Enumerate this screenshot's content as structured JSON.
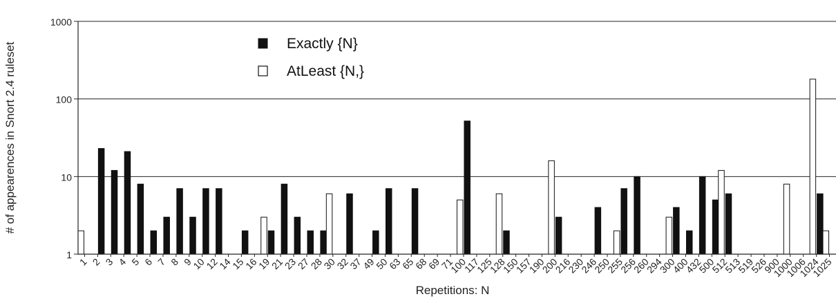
{
  "chart_data": {
    "type": "bar",
    "ylabel": "# of appearences in Snort 2.4 ruleset",
    "xlabel": "Repetitions: N",
    "yscale": "log",
    "ylim": [
      1,
      1000
    ],
    "yticks": [
      "1",
      "10",
      "100",
      "1000"
    ],
    "grid": "horizontal",
    "legend_position": "top-left",
    "categories": [
      "1",
      "2",
      "3",
      "4",
      "5",
      "6",
      "7",
      "8",
      "9",
      "10",
      "12",
      "14",
      "15",
      "16",
      "19",
      "21",
      "23",
      "27",
      "28",
      "30",
      "32",
      "37",
      "49",
      "50",
      "63",
      "65",
      "68",
      "69",
      "71",
      "100",
      "117",
      "125",
      "128",
      "150",
      "157",
      "190",
      "200",
      "216",
      "230",
      "246",
      "250",
      "255",
      "256",
      "260",
      "294",
      "300",
      "400",
      "432",
      "500",
      "512",
      "513",
      "519",
      "526",
      "900",
      "1000",
      "1006",
      "1024",
      "1025"
    ],
    "series": [
      {
        "name": "Exactly {N}",
        "color": "#111111",
        "values": [
          0,
          23,
          12,
          21,
          8,
          2,
          3,
          7,
          3,
          7,
          7,
          0,
          2,
          0,
          2,
          8,
          3,
          2,
          2,
          0,
          6,
          0,
          2,
          7,
          0,
          7,
          0,
          0,
          0,
          52,
          0,
          0,
          2,
          0,
          0,
          0,
          3,
          0,
          0,
          4,
          0,
          7,
          10,
          0,
          0,
          4,
          2,
          10,
          5,
          6,
          0,
          0,
          0,
          0,
          0,
          0,
          6,
          0
        ]
      },
      {
        "name": "AtLeast {N,}",
        "color": "#ffffff",
        "values": [
          2,
          0,
          0,
          0,
          0,
          0,
          0,
          0,
          0,
          0,
          0,
          0,
          0,
          0,
          3,
          0,
          0,
          0,
          0,
          6,
          0,
          0,
          0,
          0,
          0,
          0,
          0,
          0,
          0,
          5,
          0,
          0,
          6,
          0,
          0,
          0,
          16,
          0,
          0,
          0,
          0,
          2,
          0,
          0,
          0,
          3,
          0,
          0,
          0,
          12,
          0,
          0,
          0,
          0,
          8,
          0,
          180,
          2
        ]
      }
    ]
  }
}
